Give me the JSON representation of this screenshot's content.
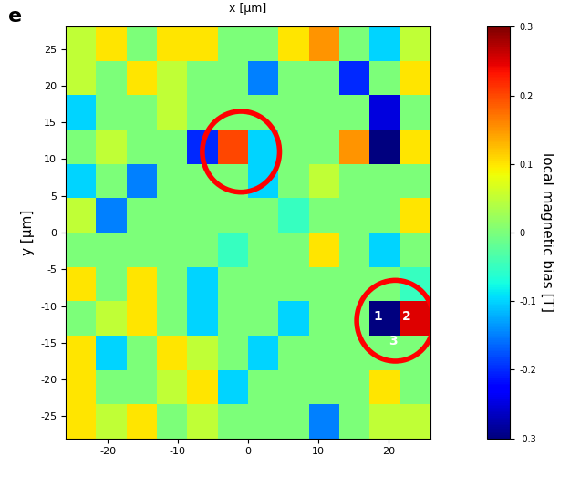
{
  "chart_data": {
    "type": "heatmap",
    "panel_label": "e",
    "top_text": "x [μm]",
    "y_label": "y [μm]",
    "colorbar_label": "local magnetic bias [T]",
    "xlim": [
      -26,
      26
    ],
    "ylim": [
      -28,
      28
    ],
    "xticks": [
      -20,
      -10,
      0,
      10,
      20
    ],
    "yticks": [
      -25,
      -20,
      -15,
      -10,
      -5,
      0,
      5,
      10,
      15,
      20,
      25
    ],
    "colorbar_range": [
      -0.3,
      0.3
    ],
    "colorbar_ticks": [
      -0.3,
      -0.2,
      -0.1,
      0,
      0.1,
      0.2,
      0.3
    ],
    "color": "jet",
    "cells": [
      [
        0.05,
        0.1,
        0.0,
        0.1,
        0.1,
        0.0,
        0.0,
        0.1,
        0.15,
        0.0,
        -0.1,
        0.05
      ],
      [
        0.05,
        0.0,
        0.1,
        0.05,
        0.0,
        0.0,
        -0.15,
        0.0,
        0.0,
        -0.2,
        0.0,
        0.1
      ],
      [
        -0.1,
        0.0,
        0.0,
        0.05,
        0.0,
        0.0,
        0.0,
        0.0,
        0.0,
        0.0,
        -0.25,
        0.0
      ],
      [
        0.0,
        0.05,
        0.0,
        0.0,
        -0.2,
        0.2,
        -0.1,
        0.0,
        0.0,
        0.15,
        -0.3,
        0.1
      ],
      [
        -0.1,
        0.0,
        -0.15,
        0.0,
        0.0,
        0.0,
        -0.1,
        0.0,
        0.05,
        0.0,
        0.0,
        0.0
      ],
      [
        0.05,
        -0.15,
        0.0,
        0.0,
        0.0,
        0.0,
        0.0,
        -0.05,
        0.0,
        0.0,
        0.0,
        0.1
      ],
      [
        0.0,
        0.0,
        0.0,
        0.0,
        0.0,
        -0.05,
        0.0,
        0.0,
        0.1,
        0.0,
        -0.1,
        0.0
      ],
      [
        0.1,
        0.0,
        0.1,
        0.0,
        -0.1,
        0.0,
        0.0,
        0.0,
        0.0,
        0.0,
        0.0,
        -0.05
      ],
      [
        0.0,
        0.05,
        0.1,
        0.0,
        -0.1,
        0.0,
        0.0,
        -0.1,
        0.0,
        0.0,
        -0.3,
        0.25
      ],
      [
        0.1,
        -0.1,
        0.0,
        0.1,
        0.05,
        0.0,
        -0.1,
        0.0,
        0.0,
        0.0,
        0.0,
        0.0
      ],
      [
        0.1,
        0.0,
        0.0,
        0.05,
        0.1,
        -0.1,
        0.0,
        0.0,
        0.0,
        0.0,
        0.1,
        0.0
      ],
      [
        0.1,
        0.05,
        0.1,
        0.0,
        0.05,
        0.0,
        0.0,
        0.0,
        -0.15,
        0.0,
        0.05,
        0.05
      ]
    ],
    "highlights": [
      {
        "x": -1,
        "y": 11,
        "r": 5.5
      },
      {
        "x": 21,
        "y": -12,
        "r": 5.5,
        "labels": [
          "1",
          "2",
          "3"
        ]
      }
    ]
  }
}
